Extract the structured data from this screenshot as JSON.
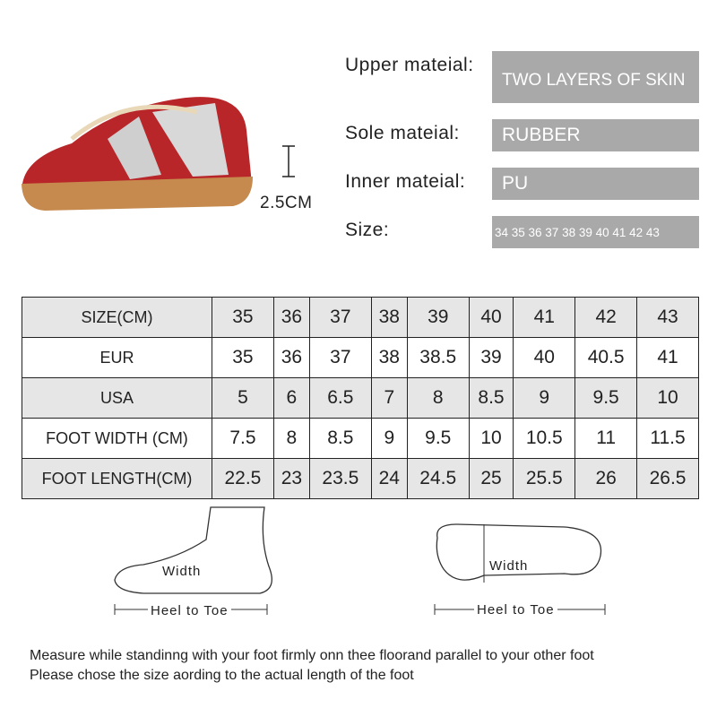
{
  "product": {
    "height_label": "2.5CM"
  },
  "specs": [
    {
      "label": "Upper mateial:",
      "value": "TWO LAYERS OF SKIN"
    },
    {
      "label": "Sole mateial:",
      "value": "RUBBER"
    },
    {
      "label": "Inner mateial:",
      "value": "PU"
    },
    {
      "label": "Size:",
      "value": "34 35 36 37 38 39 40 41 42 43"
    }
  ],
  "size_table": {
    "rows": [
      {
        "header": "SIZE(CM)",
        "cells": [
          "35",
          "36",
          "37",
          "38",
          "39",
          "40",
          "41",
          "42",
          "43"
        ]
      },
      {
        "header": "EUR",
        "cells": [
          "35",
          "36",
          "37",
          "38",
          "38.5",
          "39",
          "40",
          "40.5",
          "41"
        ]
      },
      {
        "header": "USA",
        "cells": [
          "5",
          "6",
          "6.5",
          "7",
          "8",
          "8.5",
          "9",
          "9.5",
          "10"
        ]
      },
      {
        "header": "FOOT WIDTH (CM)",
        "cells": [
          "7.5",
          "8",
          "8.5",
          "9",
          "9.5",
          "10",
          "10.5",
          "11",
          "11.5"
        ]
      },
      {
        "header": "FOOT LENGTH(CM)",
        "cells": [
          "22.5",
          "23",
          "23.5",
          "24",
          "24.5",
          "25",
          "25.5",
          "26",
          "26.5"
        ]
      }
    ]
  },
  "diagrams": {
    "side": {
      "width": "Width",
      "length": "Heel to Toe"
    },
    "sole": {
      "width": "Width",
      "length": "Heel to Toe"
    }
  },
  "notes": [
    "Measure while standinng with your foot firmly onn thee floorand parallel to your other foot",
    "Please chose the size aording to the actual length of the foot"
  ]
}
